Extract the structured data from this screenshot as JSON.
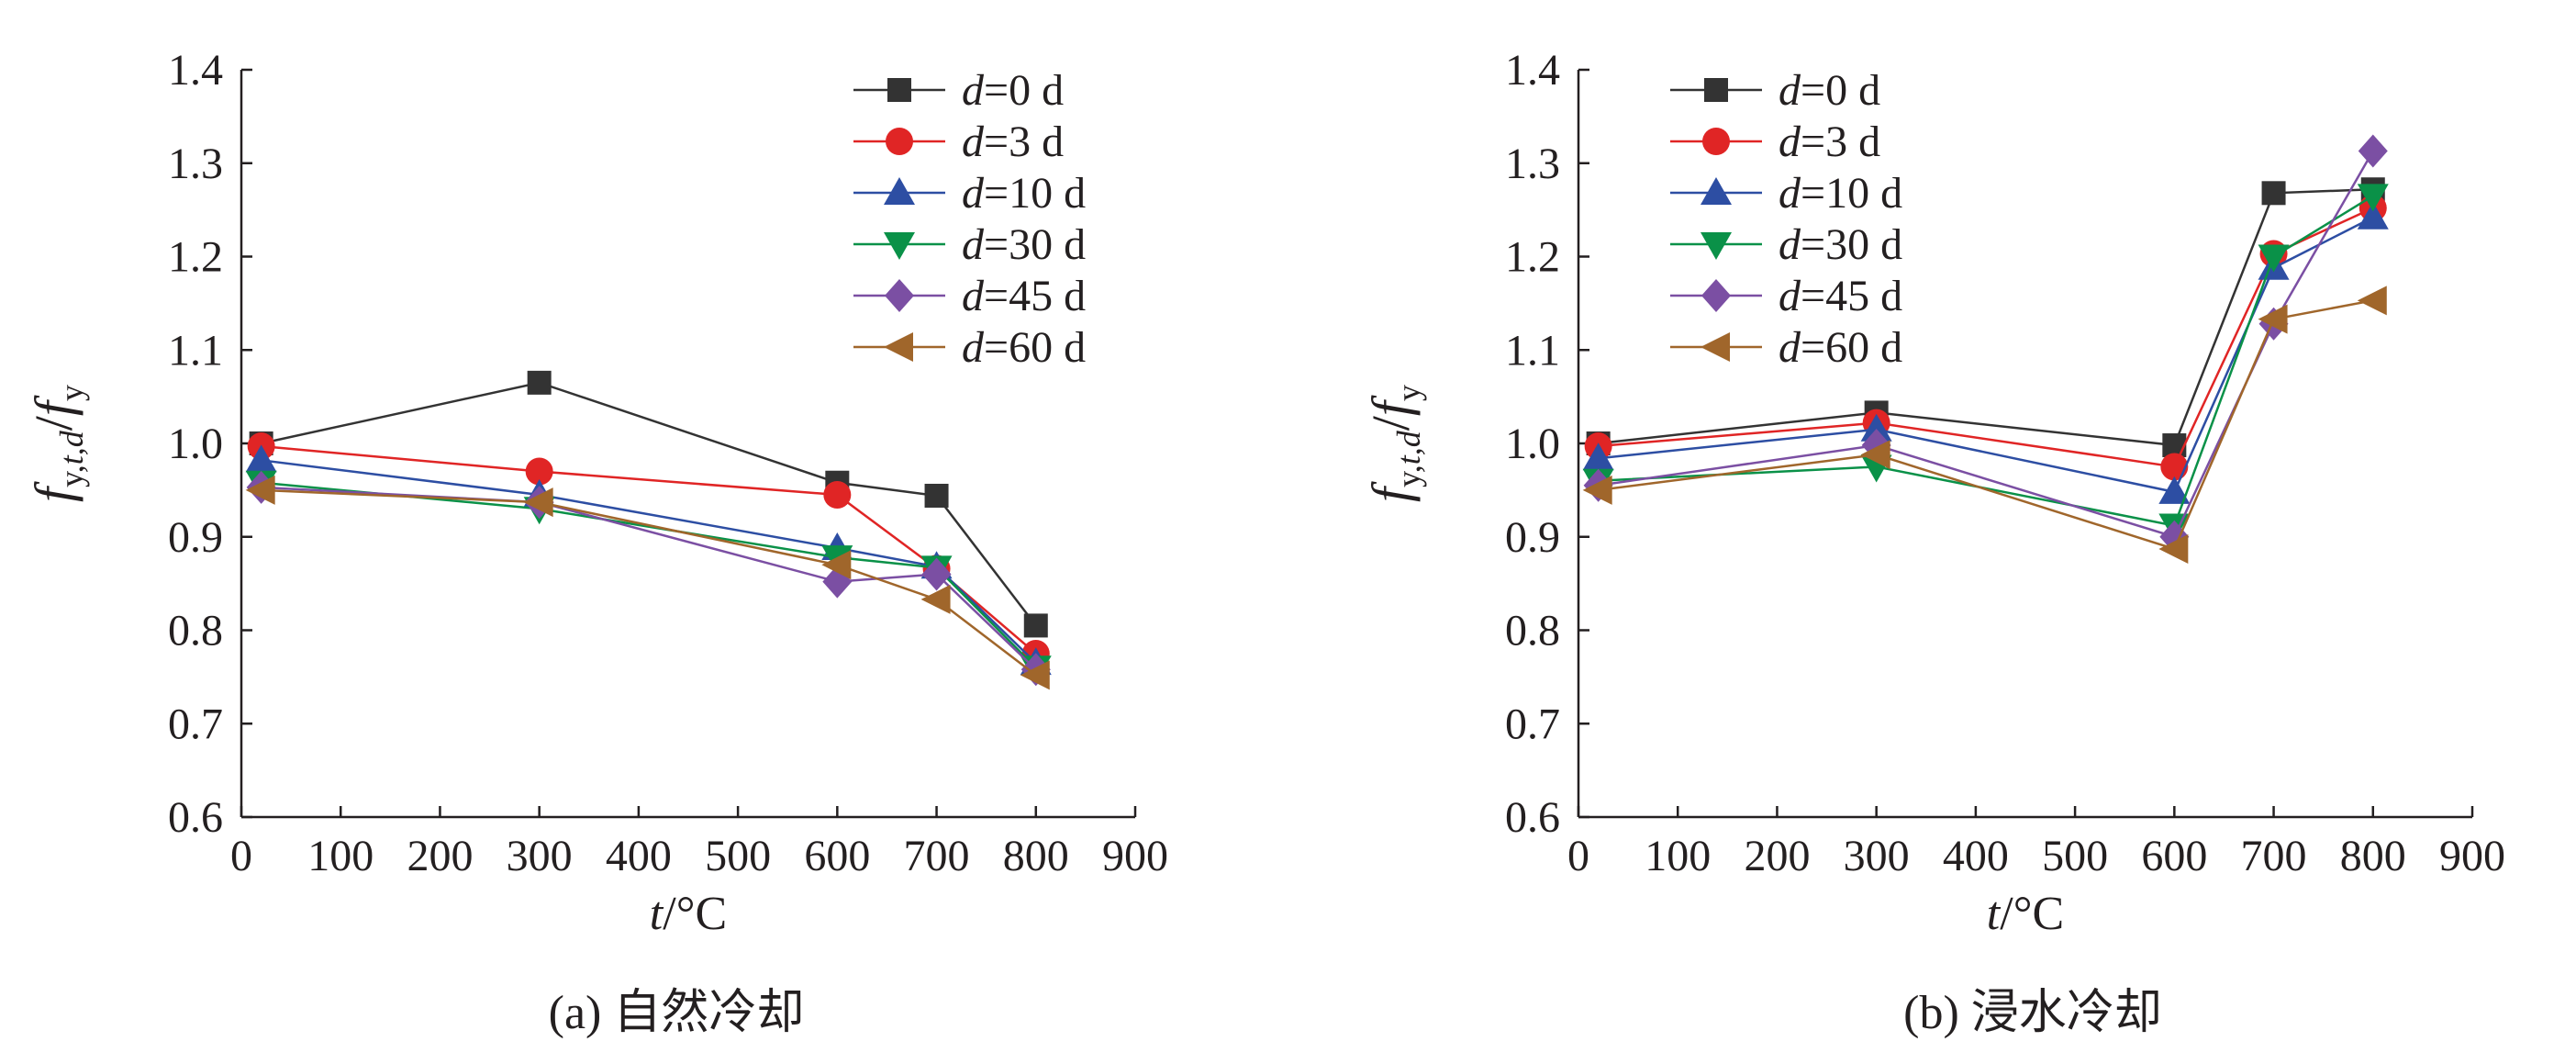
{
  "chart_data": [
    {
      "type": "line",
      "caption": "(a) 自然冷却",
      "xlabel": "t/°C",
      "ylabel": "f_{y,t,d}/f_y",
      "xlim": [
        0,
        900
      ],
      "ylim": [
        0.6,
        1.4
      ],
      "xticks": [
        0,
        100,
        200,
        300,
        400,
        500,
        600,
        700,
        800,
        900
      ],
      "yticks": [
        0.6,
        0.7,
        0.8,
        0.9,
        1.0,
        1.1,
        1.2,
        1.3,
        1.4
      ],
      "grid": false,
      "legend_position": "top-right",
      "series": [
        {
          "name": "d=0 d",
          "marker": "square",
          "color": "#333333",
          "x": [
            20,
            300,
            600,
            700,
            800
          ],
          "y": [
            1.0,
            1.065,
            0.958,
            0.944,
            0.805
          ]
        },
        {
          "name": "d=3 d",
          "marker": "circle",
          "color": "#e02525",
          "x": [
            20,
            300,
            600,
            700,
            800
          ],
          "y": [
            0.997,
            0.97,
            0.945,
            0.866,
            0.775
          ]
        },
        {
          "name": "d=10 d",
          "marker": "triangle-up",
          "color": "#2d4ea3",
          "x": [
            20,
            300,
            600,
            700,
            800
          ],
          "y": [
            0.982,
            0.945,
            0.888,
            0.868,
            0.765
          ]
        },
        {
          "name": "d=30 d",
          "marker": "triangle-down",
          "color": "#0a9148",
          "x": [
            20,
            300,
            600,
            700,
            800
          ],
          "y": [
            0.958,
            0.93,
            0.878,
            0.867,
            0.76
          ]
        },
        {
          "name": "d=45 d",
          "marker": "diamond",
          "color": "#7b4fa3",
          "x": [
            20,
            300,
            600,
            700,
            800
          ],
          "y": [
            0.953,
            0.937,
            0.852,
            0.86,
            0.758
          ]
        },
        {
          "name": "d=60 d",
          "marker": "triangle-left",
          "color": "#a0662b",
          "x": [
            20,
            300,
            600,
            700,
            800
          ],
          "y": [
            0.95,
            0.937,
            0.87,
            0.833,
            0.752
          ]
        }
      ]
    },
    {
      "type": "line",
      "caption": "(b) 浸水冷却",
      "xlabel": "t/°C",
      "ylabel": "f_{y,t,d}/f_y",
      "xlim": [
        0,
        900
      ],
      "ylim": [
        0.6,
        1.4
      ],
      "xticks": [
        0,
        100,
        200,
        300,
        400,
        500,
        600,
        700,
        800,
        900
      ],
      "yticks": [
        0.6,
        0.7,
        0.8,
        0.9,
        1.0,
        1.1,
        1.2,
        1.3,
        1.4
      ],
      "grid": false,
      "legend_position": "top-left",
      "series": [
        {
          "name": "d=0 d",
          "marker": "square",
          "color": "#333333",
          "x": [
            20,
            300,
            600,
            700,
            800
          ],
          "y": [
            1.0,
            1.033,
            0.998,
            1.268,
            1.272
          ]
        },
        {
          "name": "d=3 d",
          "marker": "circle",
          "color": "#e02525",
          "x": [
            20,
            300,
            600,
            700,
            800
          ],
          "y": [
            0.997,
            1.022,
            0.975,
            1.203,
            1.252
          ]
        },
        {
          "name": "d=10 d",
          "marker": "triangle-up",
          "color": "#2d4ea3",
          "x": [
            20,
            300,
            600,
            700,
            800
          ],
          "y": [
            0.984,
            1.015,
            0.948,
            1.188,
            1.242
          ]
        },
        {
          "name": "d=30 d",
          "marker": "triangle-down",
          "color": "#0a9148",
          "x": [
            20,
            300,
            600,
            700,
            800
          ],
          "y": [
            0.96,
            0.975,
            0.912,
            1.2,
            1.265
          ]
        },
        {
          "name": "d=45 d",
          "marker": "diamond",
          "color": "#7b4fa3",
          "x": [
            20,
            300,
            600,
            700,
            800
          ],
          "y": [
            0.955,
            0.998,
            0.9,
            1.128,
            1.313
          ]
        },
        {
          "name": "d=60 d",
          "marker": "triangle-left",
          "color": "#a0662b",
          "x": [
            20,
            300,
            600,
            700,
            800
          ],
          "y": [
            0.95,
            0.988,
            0.887,
            1.133,
            1.153
          ]
        }
      ]
    }
  ]
}
